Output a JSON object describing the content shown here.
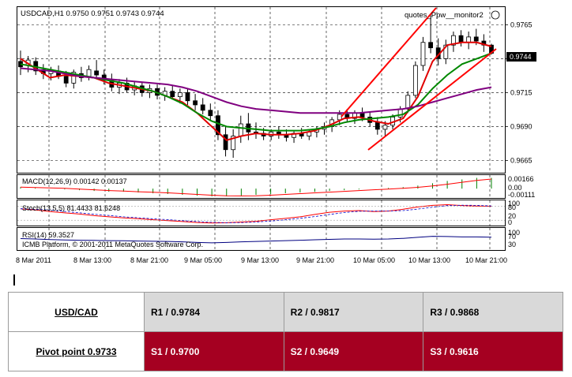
{
  "chart_header": "USDCAD,H1  0.9750 0.9751 0.9743 0.9744",
  "indicator_name": "quotes_Ppw__monitor2",
  "current_price": "0.9744",
  "colors": {
    "ma_fast": "#e00000",
    "ma_mid": "#008800",
    "ma_slow": "#800080",
    "trend": "#ff0000",
    "table_r": "#d9d9d9",
    "table_s": "#a50021"
  },
  "chart_data": [
    {
      "type": "candlestick",
      "title": "USDCAD,H1",
      "ohlc_readout": {
        "open": 0.975,
        "high": 0.9751,
        "low": 0.9743,
        "close": 0.9744
      },
      "y_ticks": [
        "0.9765",
        "0.9740",
        "0.9715",
        "0.9690",
        "0.9665"
      ],
      "ylim": [
        0.9656,
        0.9778
      ],
      "x_labels": [
        "8 Mar 2011",
        "8 Mar 13:00",
        "8 Mar 21:00",
        "9 Mar 05:00",
        "9 Mar 13:00",
        "9 Mar 21:00",
        "10 Mar 05:00",
        "10 Mar 13:00",
        "10 Mar 21:00"
      ],
      "candles": [
        {
          "o": 0.9738,
          "h": 0.9746,
          "l": 0.9728,
          "c": 0.9734
        },
        {
          "o": 0.9735,
          "h": 0.9742,
          "l": 0.973,
          "c": 0.9739
        },
        {
          "o": 0.9738,
          "h": 0.9741,
          "l": 0.9728,
          "c": 0.9731
        },
        {
          "o": 0.9732,
          "h": 0.9736,
          "l": 0.9725,
          "c": 0.9729
        },
        {
          "o": 0.9729,
          "h": 0.9734,
          "l": 0.9724,
          "c": 0.9732
        },
        {
          "o": 0.9731,
          "h": 0.9735,
          "l": 0.9725,
          "c": 0.9727
        },
        {
          "o": 0.9727,
          "h": 0.9731,
          "l": 0.9719,
          "c": 0.9722
        },
        {
          "o": 0.9722,
          "h": 0.9732,
          "l": 0.9718,
          "c": 0.973
        },
        {
          "o": 0.9729,
          "h": 0.9734,
          "l": 0.9723,
          "c": 0.9726
        },
        {
          "o": 0.9727,
          "h": 0.9735,
          "l": 0.9724,
          "c": 0.9732
        },
        {
          "o": 0.9731,
          "h": 0.9739,
          "l": 0.9725,
          "c": 0.9728
        },
        {
          "o": 0.9728,
          "h": 0.9732,
          "l": 0.9721,
          "c": 0.9724
        },
        {
          "o": 0.9724,
          "h": 0.9729,
          "l": 0.9716,
          "c": 0.9719
        },
        {
          "o": 0.9719,
          "h": 0.9725,
          "l": 0.9714,
          "c": 0.9722
        },
        {
          "o": 0.9722,
          "h": 0.9726,
          "l": 0.9715,
          "c": 0.9717
        },
        {
          "o": 0.9717,
          "h": 0.9723,
          "l": 0.9713,
          "c": 0.972
        },
        {
          "o": 0.972,
          "h": 0.9723,
          "l": 0.9712,
          "c": 0.9715
        },
        {
          "o": 0.9715,
          "h": 0.9721,
          "l": 0.9711,
          "c": 0.9718
        },
        {
          "o": 0.9718,
          "h": 0.9721,
          "l": 0.971,
          "c": 0.9713
        },
        {
          "o": 0.9713,
          "h": 0.9719,
          "l": 0.9709,
          "c": 0.9716
        },
        {
          "o": 0.9716,
          "h": 0.972,
          "l": 0.971,
          "c": 0.9712
        },
        {
          "o": 0.9712,
          "h": 0.9718,
          "l": 0.9707,
          "c": 0.9715
        },
        {
          "o": 0.9715,
          "h": 0.9718,
          "l": 0.9706,
          "c": 0.9709
        },
        {
          "o": 0.9709,
          "h": 0.9714,
          "l": 0.9702,
          "c": 0.9706
        },
        {
          "o": 0.9706,
          "h": 0.9711,
          "l": 0.9699,
          "c": 0.9702
        },
        {
          "o": 0.9702,
          "h": 0.9707,
          "l": 0.9694,
          "c": 0.9698
        },
        {
          "o": 0.9698,
          "h": 0.9702,
          "l": 0.968,
          "c": 0.9684
        },
        {
          "o": 0.9684,
          "h": 0.969,
          "l": 0.9668,
          "c": 0.9673
        },
        {
          "o": 0.9673,
          "h": 0.9688,
          "l": 0.9667,
          "c": 0.9683
        },
        {
          "o": 0.9683,
          "h": 0.9698,
          "l": 0.9678,
          "c": 0.9692
        },
        {
          "o": 0.9692,
          "h": 0.97,
          "l": 0.968,
          "c": 0.9686
        },
        {
          "o": 0.9686,
          "h": 0.9693,
          "l": 0.9681,
          "c": 0.9685
        },
        {
          "o": 0.9685,
          "h": 0.9689,
          "l": 0.968,
          "c": 0.9683
        },
        {
          "o": 0.9683,
          "h": 0.9688,
          "l": 0.968,
          "c": 0.9686
        },
        {
          "o": 0.9686,
          "h": 0.969,
          "l": 0.9681,
          "c": 0.9684
        },
        {
          "o": 0.9684,
          "h": 0.9688,
          "l": 0.9679,
          "c": 0.9682
        },
        {
          "o": 0.9682,
          "h": 0.9687,
          "l": 0.9678,
          "c": 0.9685
        },
        {
          "o": 0.9685,
          "h": 0.9689,
          "l": 0.9681,
          "c": 0.9683
        },
        {
          "o": 0.9683,
          "h": 0.9688,
          "l": 0.968,
          "c": 0.9686
        },
        {
          "o": 0.9686,
          "h": 0.969,
          "l": 0.9682,
          "c": 0.9688
        },
        {
          "o": 0.9688,
          "h": 0.9693,
          "l": 0.9684,
          "c": 0.969
        },
        {
          "o": 0.969,
          "h": 0.9697,
          "l": 0.9686,
          "c": 0.9695
        },
        {
          "o": 0.9695,
          "h": 0.9702,
          "l": 0.9691,
          "c": 0.9699
        },
        {
          "o": 0.9699,
          "h": 0.9703,
          "l": 0.9693,
          "c": 0.9696
        },
        {
          "o": 0.9696,
          "h": 0.9702,
          "l": 0.9692,
          "c": 0.97
        },
        {
          "o": 0.97,
          "h": 0.9704,
          "l": 0.9694,
          "c": 0.9697
        },
        {
          "o": 0.9697,
          "h": 0.9701,
          "l": 0.969,
          "c": 0.9693
        },
        {
          "o": 0.9693,
          "h": 0.9697,
          "l": 0.9684,
          "c": 0.9688
        },
        {
          "o": 0.9688,
          "h": 0.9694,
          "l": 0.9683,
          "c": 0.9691
        },
        {
          "o": 0.9691,
          "h": 0.9699,
          "l": 0.9688,
          "c": 0.9697
        },
        {
          "o": 0.9697,
          "h": 0.9705,
          "l": 0.9693,
          "c": 0.9703
        },
        {
          "o": 0.9703,
          "h": 0.9716,
          "l": 0.97,
          "c": 0.9713
        },
        {
          "o": 0.9713,
          "h": 0.9738,
          "l": 0.9711,
          "c": 0.9735
        },
        {
          "o": 0.9735,
          "h": 0.9756,
          "l": 0.9731,
          "c": 0.9752
        },
        {
          "o": 0.9752,
          "h": 0.9772,
          "l": 0.9744,
          "c": 0.9748
        },
        {
          "o": 0.9748,
          "h": 0.9755,
          "l": 0.9735,
          "c": 0.974
        },
        {
          "o": 0.974,
          "h": 0.9754,
          "l": 0.9736,
          "c": 0.975
        },
        {
          "o": 0.975,
          "h": 0.976,
          "l": 0.9745,
          "c": 0.9757
        },
        {
          "o": 0.9757,
          "h": 0.9761,
          "l": 0.9749,
          "c": 0.9752
        },
        {
          "o": 0.9752,
          "h": 0.976,
          "l": 0.9747,
          "c": 0.9756
        },
        {
          "o": 0.9756,
          "h": 0.9762,
          "l": 0.975,
          "c": 0.9753
        },
        {
          "o": 0.9753,
          "h": 0.9758,
          "l": 0.9745,
          "c": 0.975
        },
        {
          "o": 0.975,
          "h": 0.9751,
          "l": 0.9743,
          "c": 0.9744
        }
      ],
      "moving_averages": [
        {
          "name": "MA fast",
          "color": "#e00000",
          "values": [
            0.974,
            0.9733,
            0.9726,
            0.9728,
            0.9727,
            0.9726,
            0.9722,
            0.972,
            0.9718,
            0.9716,
            0.9712,
            0.9708,
            0.97,
            0.969,
            0.968,
            0.9683,
            0.9685,
            0.9684,
            0.9684,
            0.9685,
            0.9687,
            0.9691,
            0.9696,
            0.9697,
            0.9694,
            0.9692,
            0.9696,
            0.9712,
            0.9738,
            0.975,
            0.9752,
            0.9752,
            0.9749
          ]
        },
        {
          "name": "MA mid",
          "color": "#008800",
          "values": [
            0.9736,
            0.9734,
            0.9732,
            0.973,
            0.9728,
            0.9726,
            0.9724,
            0.9722,
            0.9719,
            0.9716,
            0.9712,
            0.9707,
            0.97,
            0.9694,
            0.969,
            0.9689,
            0.9688,
            0.9687,
            0.9687,
            0.9687,
            0.9688,
            0.969,
            0.9693,
            0.9695,
            0.9696,
            0.9697,
            0.9699,
            0.9706,
            0.9718,
            0.9728,
            0.9736,
            0.974,
            0.9744
          ]
        },
        {
          "name": "MA slow",
          "color": "#800080",
          "values": [
            0.9733,
            0.9732,
            0.9731,
            0.9729,
            0.9727,
            0.9726,
            0.9725,
            0.9724,
            0.9723,
            0.9722,
            0.9721,
            0.9719,
            0.9716,
            0.9712,
            0.9708,
            0.9705,
            0.9703,
            0.9702,
            0.9701,
            0.97,
            0.97,
            0.97,
            0.97,
            0.97,
            0.9701,
            0.9702,
            0.9703,
            0.9705,
            0.9708,
            0.9711,
            0.9714,
            0.9717,
            0.9719
          ]
        }
      ]
    },
    {
      "type": "bar",
      "title": "MACD(12,26,9) 0.00142 0.00137",
      "y_ticks": [
        "0.00166",
        "0.00",
        "-0.00111"
      ],
      "ylim": [
        -0.00111,
        0.00166
      ],
      "values": [
        0.0002,
        0.0001,
        0.0,
        -0.0001,
        -0.0002,
        -0.0003,
        -0.0004,
        -0.0004,
        -0.0005,
        -0.0006,
        -0.0007,
        -0.0008,
        -0.0009,
        -0.001,
        -0.001,
        -0.0009,
        -0.0008,
        -0.0007,
        -0.0006,
        -0.0005,
        -0.0004,
        -0.0003,
        -0.0002,
        -0.0001,
        0.0,
        0.0001,
        0.0002,
        0.0004,
        0.0007,
        0.001,
        0.0012,
        0.0014,
        0.0014
      ]
    },
    {
      "type": "line",
      "title": "Stoch(13,5,5) 81.4433 81.6248",
      "y_ticks": [
        "100",
        "80",
        "20",
        "0"
      ],
      "ylim": [
        0,
        100
      ],
      "values": [
        70,
        65,
        58,
        52,
        47,
        40,
        35,
        30,
        27,
        22,
        18,
        14,
        10,
        8,
        9,
        12,
        15,
        22,
        28,
        35,
        45,
        55,
        60,
        62,
        58,
        60,
        68,
        78,
        85,
        88,
        84,
        82,
        81
      ]
    },
    {
      "type": "line",
      "title": "RSI(14) 59.3527",
      "y_ticks": [
        "100",
        "70",
        "30"
      ],
      "ylim": [
        0,
        100
      ],
      "values": [
        52,
        50,
        47,
        45,
        44,
        43,
        42,
        41,
        40,
        39,
        38,
        36,
        33,
        31,
        33,
        36,
        38,
        40,
        42,
        44,
        46,
        48,
        50,
        50,
        49,
        50,
        53,
        58,
        63,
        62,
        60,
        60,
        59
      ]
    }
  ],
  "copyright": "ICMB Platform, © 2001-2011 MetaQuotes Software Corp.",
  "table": {
    "pair": "USD/CAD",
    "pivot": "Pivot point 0.9733",
    "r1": "R1 / 0.9784",
    "r2": "R2 / 0.9817",
    "r3": "R3 / 0.9868",
    "s1": "S1 / 0.9700",
    "s2": "S2 / 0.9649",
    "s3": "S3 / 0.9616"
  }
}
